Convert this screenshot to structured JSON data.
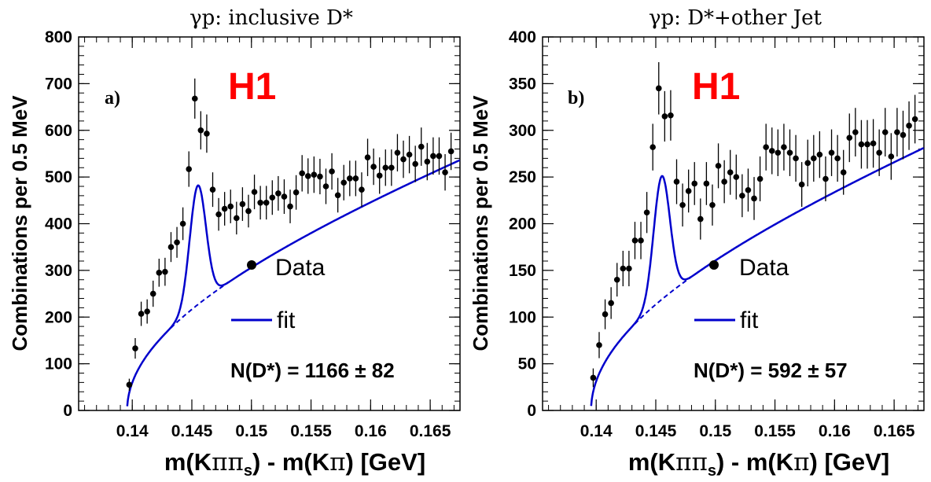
{
  "colors": {
    "fit": "#0000cc",
    "logo": "#ff0000",
    "data": "#000000"
  },
  "chart_data": [
    {
      "type": "scatter",
      "title": "γp: inclusive D*",
      "panel_label": "a)",
      "logo": "H1",
      "xlabel": "m(Kππ_s) - m(Kπ) [GeV]",
      "xlabel_parts": [
        "m(K",
        "ππ",
        "s",
        ") - m(K",
        "π",
        ") [GeV]"
      ],
      "ylabel": "Combinations per 0.5 MeV",
      "xlim": [
        0.1355,
        0.1675
      ],
      "ylim": [
        0,
        800
      ],
      "xticks": [
        0.14,
        0.145,
        0.15,
        0.155,
        0.16,
        0.165
      ],
      "xtick_labels": [
        "0.14",
        "0.145",
        "0.15",
        "0.155",
        "0.16",
        "0.165"
      ],
      "yticks": [
        0,
        100,
        200,
        300,
        400,
        500,
        600,
        700,
        800
      ],
      "ytick_labels": [
        "0",
        "100",
        "200",
        "300",
        "400",
        "500",
        "600",
        "700",
        "800"
      ],
      "legend": {
        "data_label": "Data",
        "fit_label": "fit"
      },
      "annotation": "N(D*) = 1166 ± 82",
      "fit_params": {
        "x0": 0.13957,
        "bg_a": 820,
        "bg_p": 0.5,
        "bg_c": 4.2,
        "sig_amp": 255,
        "sig_mu": 0.1455,
        "sig_sigma": 0.00068
      },
      "series": [
        {
          "type": "points",
          "x": [
            0.13975,
            0.14025,
            0.14075,
            0.14125,
            0.14175,
            0.14225,
            0.14275,
            0.14325,
            0.14375,
            0.14425,
            0.14475,
            0.14525,
            0.14575,
            0.14625,
            0.14675,
            0.14725,
            0.14775,
            0.14825,
            0.14875,
            0.14925,
            0.14975,
            0.15025,
            0.15075,
            0.15125,
            0.15175,
            0.15225,
            0.15275,
            0.15325,
            0.15375,
            0.15425,
            0.15475,
            0.15525,
            0.15575,
            0.15625,
            0.15675,
            0.15725,
            0.15775,
            0.15825,
            0.15875,
            0.15925,
            0.15975,
            0.16025,
            0.16075,
            0.16125,
            0.16175,
            0.16225,
            0.16275,
            0.16325,
            0.16375,
            0.16425,
            0.16475,
            0.16525,
            0.16575,
            0.16625,
            0.16675
          ],
          "y": [
            55,
            133,
            207,
            212,
            250,
            295,
            297,
            350,
            360,
            400,
            517,
            668,
            600,
            593,
            473,
            420,
            432,
            437,
            412,
            442,
            427,
            468,
            445,
            445,
            456,
            465,
            458,
            437,
            467,
            508,
            502,
            505,
            501,
            480,
            512,
            461,
            488,
            497,
            497,
            473,
            542,
            522,
            503,
            520,
            520,
            552,
            538,
            548,
            528,
            565,
            533,
            545,
            545,
            510,
            555
          ],
          "err": [
            13,
            22,
            26,
            26,
            28,
            30,
            30,
            32,
            33,
            35,
            38,
            43,
            41,
            41,
            37,
            35,
            36,
            36,
            35,
            36,
            35,
            37,
            36,
            36,
            37,
            37,
            37,
            36,
            37,
            39,
            38,
            39,
            38,
            38,
            39,
            37,
            38,
            38,
            38,
            37,
            40,
            39,
            39,
            39,
            39,
            40,
            40,
            40,
            39,
            41,
            40,
            40,
            40,
            39,
            40
          ]
        }
      ]
    },
    {
      "type": "scatter",
      "title": "γp: D*+other Jet",
      "panel_label": "b)",
      "logo": "H1",
      "xlabel": "m(Kππ_s) - m(Kπ) [GeV]",
      "xlabel_parts": [
        "m(K",
        "ππ",
        "s",
        ") - m(K",
        "π",
        ") [GeV]"
      ],
      "ylabel": "Combinations per 0.5 MeV",
      "xlim": [
        0.1355,
        0.1675
      ],
      "ylim": [
        0,
        400
      ],
      "xticks": [
        0.14,
        0.145,
        0.15,
        0.155,
        0.16,
        0.165
      ],
      "xtick_labels": [
        "0.14",
        "0.145",
        "0.15",
        "0.155",
        "0.16",
        "0.165"
      ],
      "yticks": [
        0,
        50,
        100,
        150,
        200,
        250,
        300,
        350,
        400
      ],
      "ytick_labels": [
        "0",
        "50",
        "100",
        "150",
        "200",
        "250",
        "300",
        "350",
        "400"
      ],
      "legend": {
        "data_label": "Data",
        "fit_label": "fit"
      },
      "annotation": "N(D*) = 592 ± 57",
      "fit_params": {
        "x0": 0.13957,
        "bg_a": 430,
        "bg_p": 0.5,
        "bg_c": 4.2,
        "sig_amp": 132,
        "sig_mu": 0.1455,
        "sig_sigma": 0.00068
      },
      "series": [
        {
          "type": "points",
          "x": [
            0.13975,
            0.14025,
            0.14075,
            0.14125,
            0.14175,
            0.14225,
            0.14275,
            0.14325,
            0.14375,
            0.14425,
            0.14475,
            0.14525,
            0.14575,
            0.14625,
            0.14675,
            0.14725,
            0.14775,
            0.14825,
            0.14875,
            0.14925,
            0.14975,
            0.15025,
            0.15075,
            0.15125,
            0.15175,
            0.15225,
            0.15275,
            0.15325,
            0.15375,
            0.15425,
            0.15475,
            0.15525,
            0.15575,
            0.15625,
            0.15675,
            0.15725,
            0.15775,
            0.15825,
            0.15875,
            0.15925,
            0.15975,
            0.16025,
            0.16075,
            0.16125,
            0.16175,
            0.16225,
            0.16275,
            0.16325,
            0.16375,
            0.16425,
            0.16475,
            0.16525,
            0.16575,
            0.16625,
            0.16675
          ],
          "y": [
            35,
            70,
            103,
            115,
            140,
            152,
            152,
            182,
            182,
            212,
            282,
            345,
            315,
            316,
            245,
            220,
            235,
            243,
            205,
            243,
            220,
            262,
            245,
            255,
            250,
            230,
            236,
            227,
            248,
            282,
            278,
            276,
            282,
            276,
            270,
            242,
            265,
            270,
            274,
            248,
            276,
            270,
            255,
            292,
            298,
            285,
            285,
            286,
            276,
            298,
            272,
            298,
            295,
            305,
            312
          ],
          "err": [
            10,
            14,
            16,
            17,
            18,
            19,
            19,
            20,
            20,
            22,
            25,
            28,
            27,
            27,
            24,
            23,
            23,
            23,
            22,
            23,
            22,
            24,
            23,
            24,
            24,
            23,
            23,
            23,
            24,
            25,
            25,
            25,
            25,
            25,
            25,
            24,
            25,
            25,
            25,
            24,
            25,
            25,
            24,
            26,
            26,
            26,
            26,
            26,
            25,
            26,
            25,
            26,
            26,
            26,
            26
          ]
        }
      ]
    }
  ]
}
